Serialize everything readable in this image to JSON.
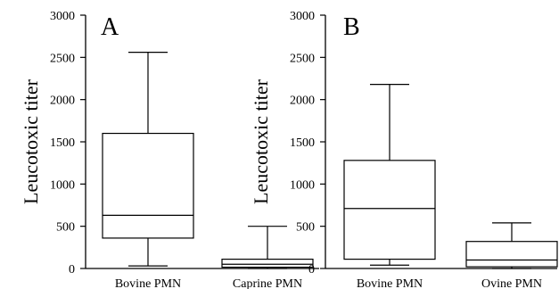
{
  "chart_data": [
    {
      "type": "box",
      "panel_label": "A",
      "ylabel": "Leucotoxic titer",
      "ylim": [
        0,
        3000
      ],
      "yticks": [
        "0",
        "500",
        "1000",
        "1500",
        "2000",
        "2500",
        "3000"
      ],
      "categories": [
        "Bovine PMN",
        "Caprine PMN"
      ],
      "boxes": [
        {
          "whisker_low": 30,
          "q1": 360,
          "median": 630,
          "q3": 1600,
          "whisker_high": 2560
        },
        {
          "whisker_low": 0,
          "q1": 15,
          "median": 50,
          "q3": 110,
          "whisker_high": 500
        }
      ]
    },
    {
      "type": "box",
      "panel_label": "B",
      "ylabel": "Leucotoxic titer",
      "ylim": [
        0,
        3000
      ],
      "yticks": [
        "0",
        "500",
        "1000",
        "1500",
        "2000",
        "2500",
        "3000"
      ],
      "categories": [
        "Bovine PMN",
        "Ovine PMN"
      ],
      "boxes": [
        {
          "whisker_low": 40,
          "q1": 110,
          "median": 710,
          "q3": 1280,
          "whisker_high": 2180
        },
        {
          "whisker_low": 0,
          "q1": 20,
          "median": 100,
          "q3": 320,
          "whisker_high": 540
        }
      ]
    }
  ]
}
